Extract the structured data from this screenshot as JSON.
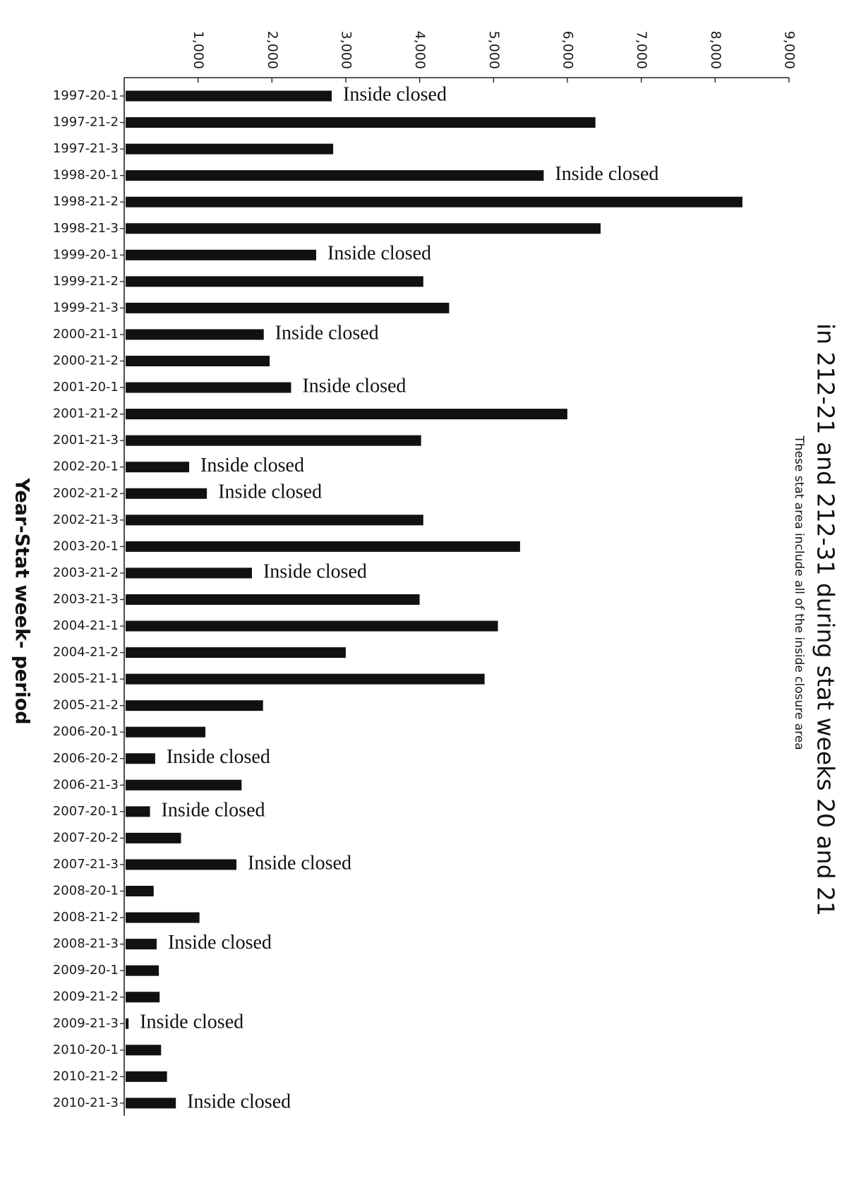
{
  "chart_data": {
    "type": "bar",
    "orientation": "horizontal",
    "title": "in 212-21 and 212-31 during stat weeks 20 and 21",
    "subtitle": "These stat area include all of the inside closure area",
    "ylabel": "Year-Stat week- period",
    "xlabel": "",
    "xlim": [
      0,
      9000
    ],
    "x_ticks": [
      {
        "value": 1000,
        "label": "1,000"
      },
      {
        "value": 2000,
        "label": "2,000"
      },
      {
        "value": 3000,
        "label": "3,000"
      },
      {
        "value": 4000,
        "label": "4,000"
      },
      {
        "value": 5000,
        "label": "5,000"
      },
      {
        "value": 6000,
        "label": "6,000"
      },
      {
        "value": 7000,
        "label": "7,000"
      },
      {
        "value": 8000,
        "label": "8,000"
      },
      {
        "value": 9000,
        "label": "9,000"
      }
    ],
    "grid": false,
    "bar_color": "#111111",
    "categories": [
      "1997-20-1",
      "1997-21-2",
      "1997-21-3",
      "1998-20-1",
      "1998-21-2",
      "1998-21-3",
      "1999-20-1",
      "1999-21-2",
      "1999-21-3",
      "2000-21-1",
      "2000-21-2",
      "2001-20-1",
      "2001-21-2",
      "2001-21-3",
      "2002-20-1",
      "2002-21-2",
      "2002-21-3",
      "2003-20-1",
      "2003-21-2",
      "2003-21-3",
      "2004-21-1",
      "2004-21-2",
      "2005-21-1",
      "2005-21-2",
      "2006-20-1",
      "2006-20-2",
      "2006-21-3",
      "2007-20-1",
      "2007-20-2",
      "2007-21-3",
      "2008-20-1",
      "2008-21-2",
      "2008-21-3",
      "2009-20-1",
      "2009-21-2",
      "2009-21-3",
      "2010-20-1",
      "2010-21-2",
      "2010-21-3"
    ],
    "values": [
      2790,
      6360,
      2810,
      5660,
      8350,
      6430,
      2580,
      4030,
      4380,
      1870,
      1950,
      2240,
      5980,
      4000,
      860,
      1100,
      4030,
      5340,
      1710,
      3980,
      5040,
      2980,
      4860,
      1860,
      1080,
      400,
      1570,
      330,
      750,
      1500,
      380,
      1000,
      420,
      450,
      460,
      40,
      480,
      560,
      680
    ],
    "annotation_text": "Inside closed",
    "annotated": [
      true,
      false,
      false,
      true,
      false,
      false,
      true,
      false,
      false,
      true,
      false,
      true,
      false,
      false,
      true,
      true,
      false,
      false,
      true,
      false,
      false,
      false,
      false,
      false,
      false,
      true,
      false,
      true,
      false,
      true,
      false,
      false,
      true,
      false,
      false,
      true,
      false,
      false,
      true
    ]
  }
}
